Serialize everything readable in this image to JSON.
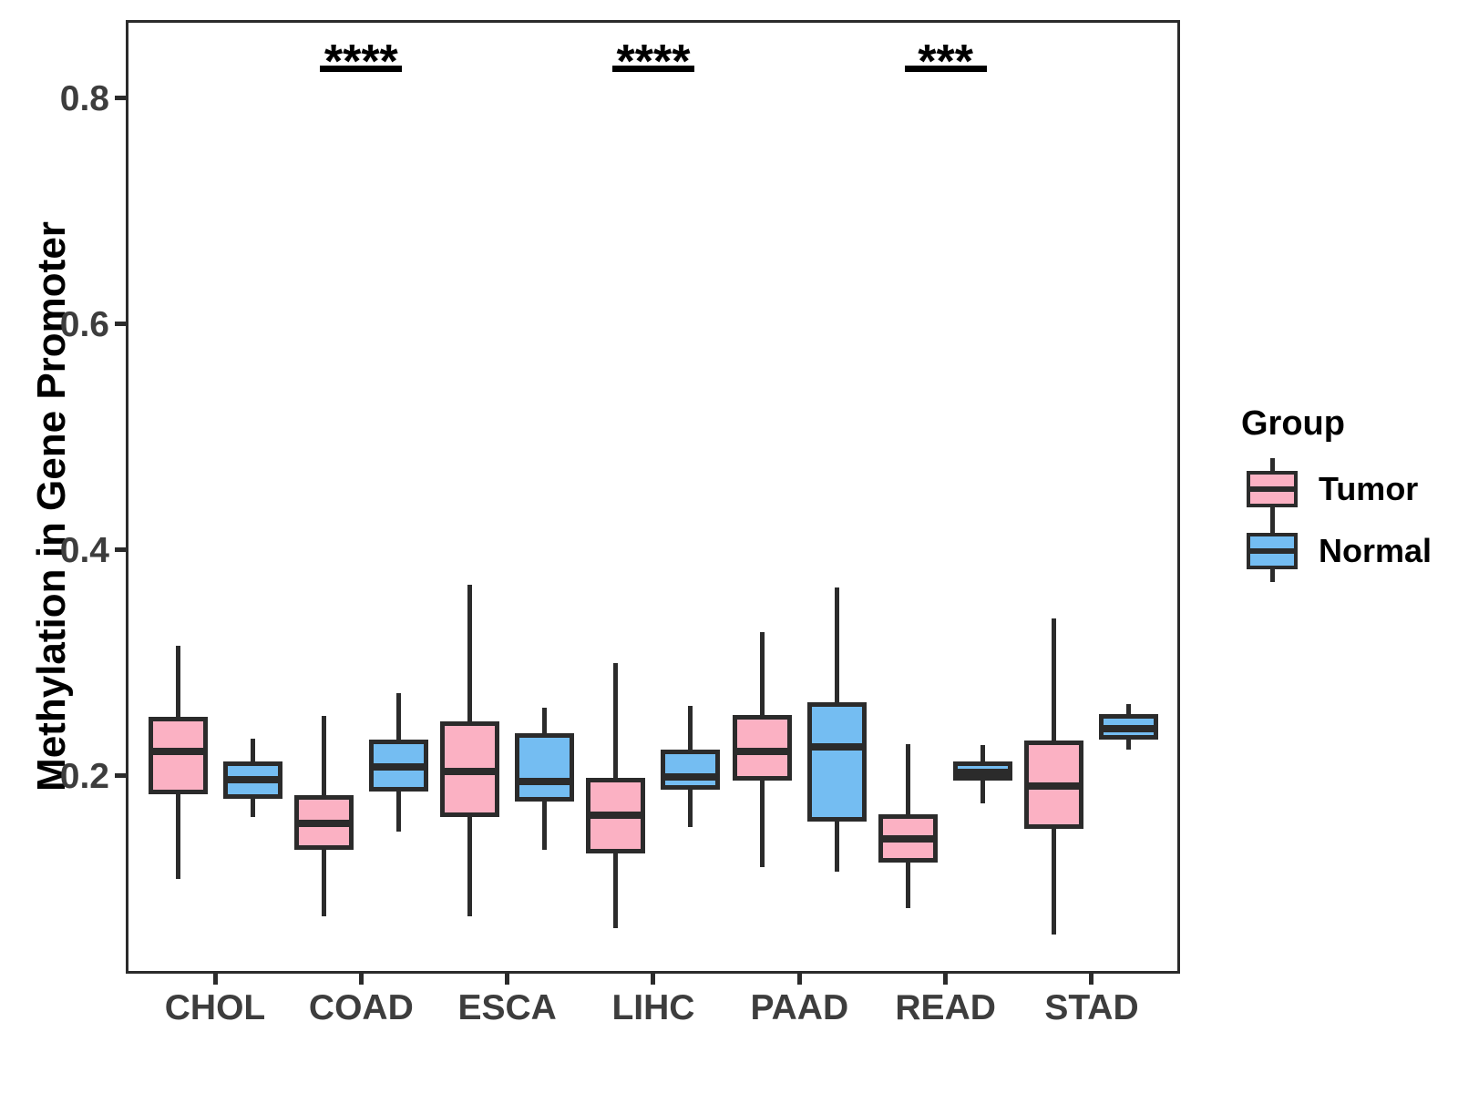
{
  "chart_data": {
    "type": "boxplot",
    "title": "",
    "xlabel": "",
    "ylabel": "Methylation in Gene Promoter",
    "categories": [
      "CHOL",
      "COAD",
      "ESCA",
      "LIHC",
      "PAAD",
      "READ",
      "STAD"
    ],
    "groups": [
      "Tumor",
      "Normal"
    ],
    "colors": {
      "Tumor": "#FBB1C3",
      "Normal": "#74BDF2",
      "outline": "#2b2b2b",
      "annotation": "#000000"
    },
    "ylim": [
      0.025,
      0.869
    ],
    "yticks": [
      0.2,
      0.4,
      0.6,
      0.8
    ],
    "ytick_labels": [
      "0.2",
      "0.4",
      "0.6",
      "0.8"
    ],
    "grid": false,
    "legend": {
      "title": "Group",
      "position": "right",
      "entries": [
        "Tumor",
        "Normal"
      ]
    },
    "series": [
      {
        "name": "Tumor",
        "boxes": [
          {
            "category": "CHOL",
            "min": 0.109,
            "q1": 0.184,
            "median": 0.222,
            "q3": 0.252,
            "max": 0.315
          },
          {
            "category": "COAD",
            "min": 0.076,
            "q1": 0.135,
            "median": 0.158,
            "q3": 0.183,
            "max": 0.253
          },
          {
            "category": "ESCA",
            "min": 0.076,
            "q1": 0.164,
            "median": 0.204,
            "q3": 0.248,
            "max": 0.369
          },
          {
            "category": "LIHC",
            "min": 0.065,
            "q1": 0.131,
            "median": 0.165,
            "q3": 0.198,
            "max": 0.3
          },
          {
            "category": "PAAD",
            "min": 0.119,
            "q1": 0.196,
            "median": 0.222,
            "q3": 0.254,
            "max": 0.327
          },
          {
            "category": "READ",
            "min": 0.083,
            "q1": 0.123,
            "median": 0.144,
            "q3": 0.166,
            "max": 0.228
          },
          {
            "category": "STAD",
            "min": 0.06,
            "q1": 0.153,
            "median": 0.191,
            "q3": 0.231,
            "max": 0.339
          }
        ]
      },
      {
        "name": "Normal",
        "boxes": [
          {
            "category": "CHOL",
            "min": 0.164,
            "q1": 0.18,
            "median": 0.197,
            "q3": 0.213,
            "max": 0.233
          },
          {
            "category": "COAD",
            "min": 0.151,
            "q1": 0.186,
            "median": 0.208,
            "q3": 0.232,
            "max": 0.273
          },
          {
            "category": "ESCA",
            "min": 0.135,
            "q1": 0.177,
            "median": 0.195,
            "q3": 0.238,
            "max": 0.26
          },
          {
            "category": "LIHC",
            "min": 0.155,
            "q1": 0.188,
            "median": 0.199,
            "q3": 0.223,
            "max": 0.262
          },
          {
            "category": "PAAD",
            "min": 0.115,
            "q1": 0.16,
            "median": 0.226,
            "q3": 0.265,
            "max": 0.367
          },
          {
            "category": "READ",
            "min": 0.176,
            "q1": 0.196,
            "median": 0.203,
            "q3": 0.213,
            "max": 0.227
          },
          {
            "category": "STAD",
            "min": 0.223,
            "q1": 0.232,
            "median": 0.242,
            "q3": 0.255,
            "max": 0.264
          }
        ]
      }
    ],
    "annotations": [
      {
        "category": "COAD",
        "label": "****"
      },
      {
        "category": "LIHC",
        "label": "****"
      },
      {
        "category": "READ",
        "label": "***"
      }
    ]
  }
}
